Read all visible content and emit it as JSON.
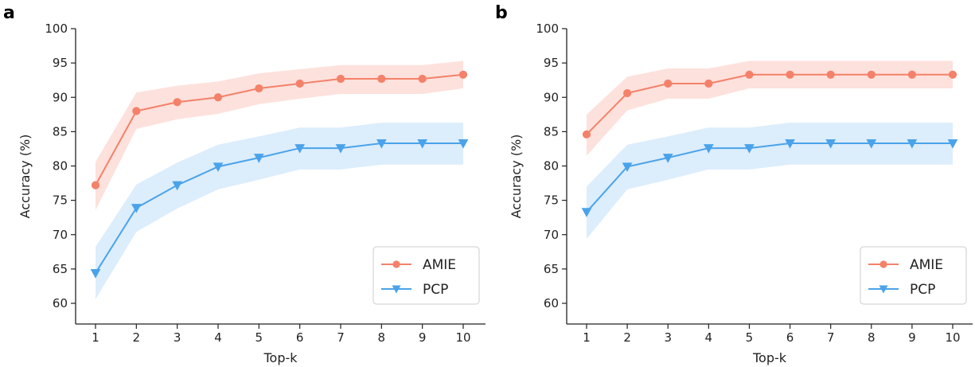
{
  "figure": {
    "panels": [
      "a",
      "b"
    ]
  },
  "chart_data": [
    {
      "panel": "a",
      "type": "line",
      "x": [
        1,
        2,
        3,
        4,
        5,
        6,
        7,
        8,
        9,
        10
      ],
      "xlabel": "Top-k",
      "ylabel": "Accuracy (%)",
      "xticks": [
        "1",
        "2",
        "3",
        "4",
        "5",
        "6",
        "7",
        "8",
        "9",
        "10"
      ],
      "yticks": [
        "60",
        "65",
        "70",
        "75",
        "80",
        "85",
        "90",
        "95",
        "100"
      ],
      "xlim": [
        0.5,
        10.3
      ],
      "ylim": [
        57,
        100
      ],
      "grid": false,
      "legend": "lower right",
      "series": [
        {
          "name": "AMIE",
          "color": "#f4816a",
          "band_color": "#fde1dc",
          "marker": "circle",
          "values": [
            77.2,
            88.0,
            89.3,
            90.0,
            91.3,
            92.0,
            92.7,
            92.7,
            92.7,
            93.3
          ],
          "lower": [
            73.6,
            85.4,
            86.8,
            87.6,
            89.0,
            89.8,
            90.5,
            90.5,
            90.5,
            91.3
          ],
          "upper": [
            80.6,
            90.7,
            91.7,
            92.3,
            93.5,
            94.1,
            94.7,
            94.7,
            94.7,
            95.3
          ]
        },
        {
          "name": "PCP",
          "color": "#4aa3ea",
          "band_color": "#dcedfc",
          "marker": "triangle-down",
          "values": [
            64.4,
            73.9,
            77.2,
            79.9,
            81.2,
            82.6,
            82.6,
            83.3,
            83.3,
            83.3
          ],
          "lower": [
            60.6,
            70.4,
            73.8,
            76.6,
            78.0,
            79.5,
            79.5,
            80.2,
            80.2,
            80.2
          ],
          "upper": [
            68.2,
            77.3,
            80.5,
            83.1,
            84.3,
            85.6,
            85.6,
            86.3,
            86.3,
            86.3
          ]
        }
      ]
    },
    {
      "panel": "b",
      "type": "line",
      "x": [
        1,
        2,
        3,
        4,
        5,
        6,
        7,
        8,
        9,
        10
      ],
      "xlabel": "Top-k",
      "ylabel": "Accuracy (%)",
      "xticks": [
        "1",
        "2",
        "3",
        "4",
        "5",
        "6",
        "7",
        "8",
        "9",
        "10"
      ],
      "yticks": [
        "60",
        "65",
        "70",
        "75",
        "80",
        "85",
        "90",
        "95",
        "100"
      ],
      "xlim": [
        0.5,
        10.3
      ],
      "ylim": [
        57,
        100
      ],
      "grid": false,
      "legend": "lower right",
      "series": [
        {
          "name": "AMIE",
          "color": "#f4816a",
          "band_color": "#fde1dc",
          "marker": "circle",
          "values": [
            84.6,
            90.6,
            92.0,
            92.0,
            93.3,
            93.3,
            93.3,
            93.3,
            93.3,
            93.3
          ],
          "lower": [
            81.5,
            88.1,
            89.8,
            89.8,
            91.3,
            91.3,
            91.3,
            91.3,
            91.3,
            91.3
          ],
          "upper": [
            87.5,
            93.0,
            94.2,
            94.2,
            95.3,
            95.3,
            95.3,
            95.3,
            95.3,
            95.3
          ]
        },
        {
          "name": "PCP",
          "color": "#4aa3ea",
          "band_color": "#dcedfc",
          "marker": "triangle-down",
          "values": [
            73.3,
            79.9,
            81.2,
            82.6,
            82.6,
            83.3,
            83.3,
            83.3,
            83.3,
            83.3
          ],
          "lower": [
            69.4,
            76.6,
            78.0,
            79.5,
            79.5,
            80.2,
            80.2,
            80.2,
            80.2,
            80.2
          ],
          "upper": [
            77.0,
            83.1,
            84.3,
            85.6,
            85.6,
            86.3,
            86.3,
            86.3,
            86.3,
            86.3
          ]
        }
      ]
    }
  ]
}
